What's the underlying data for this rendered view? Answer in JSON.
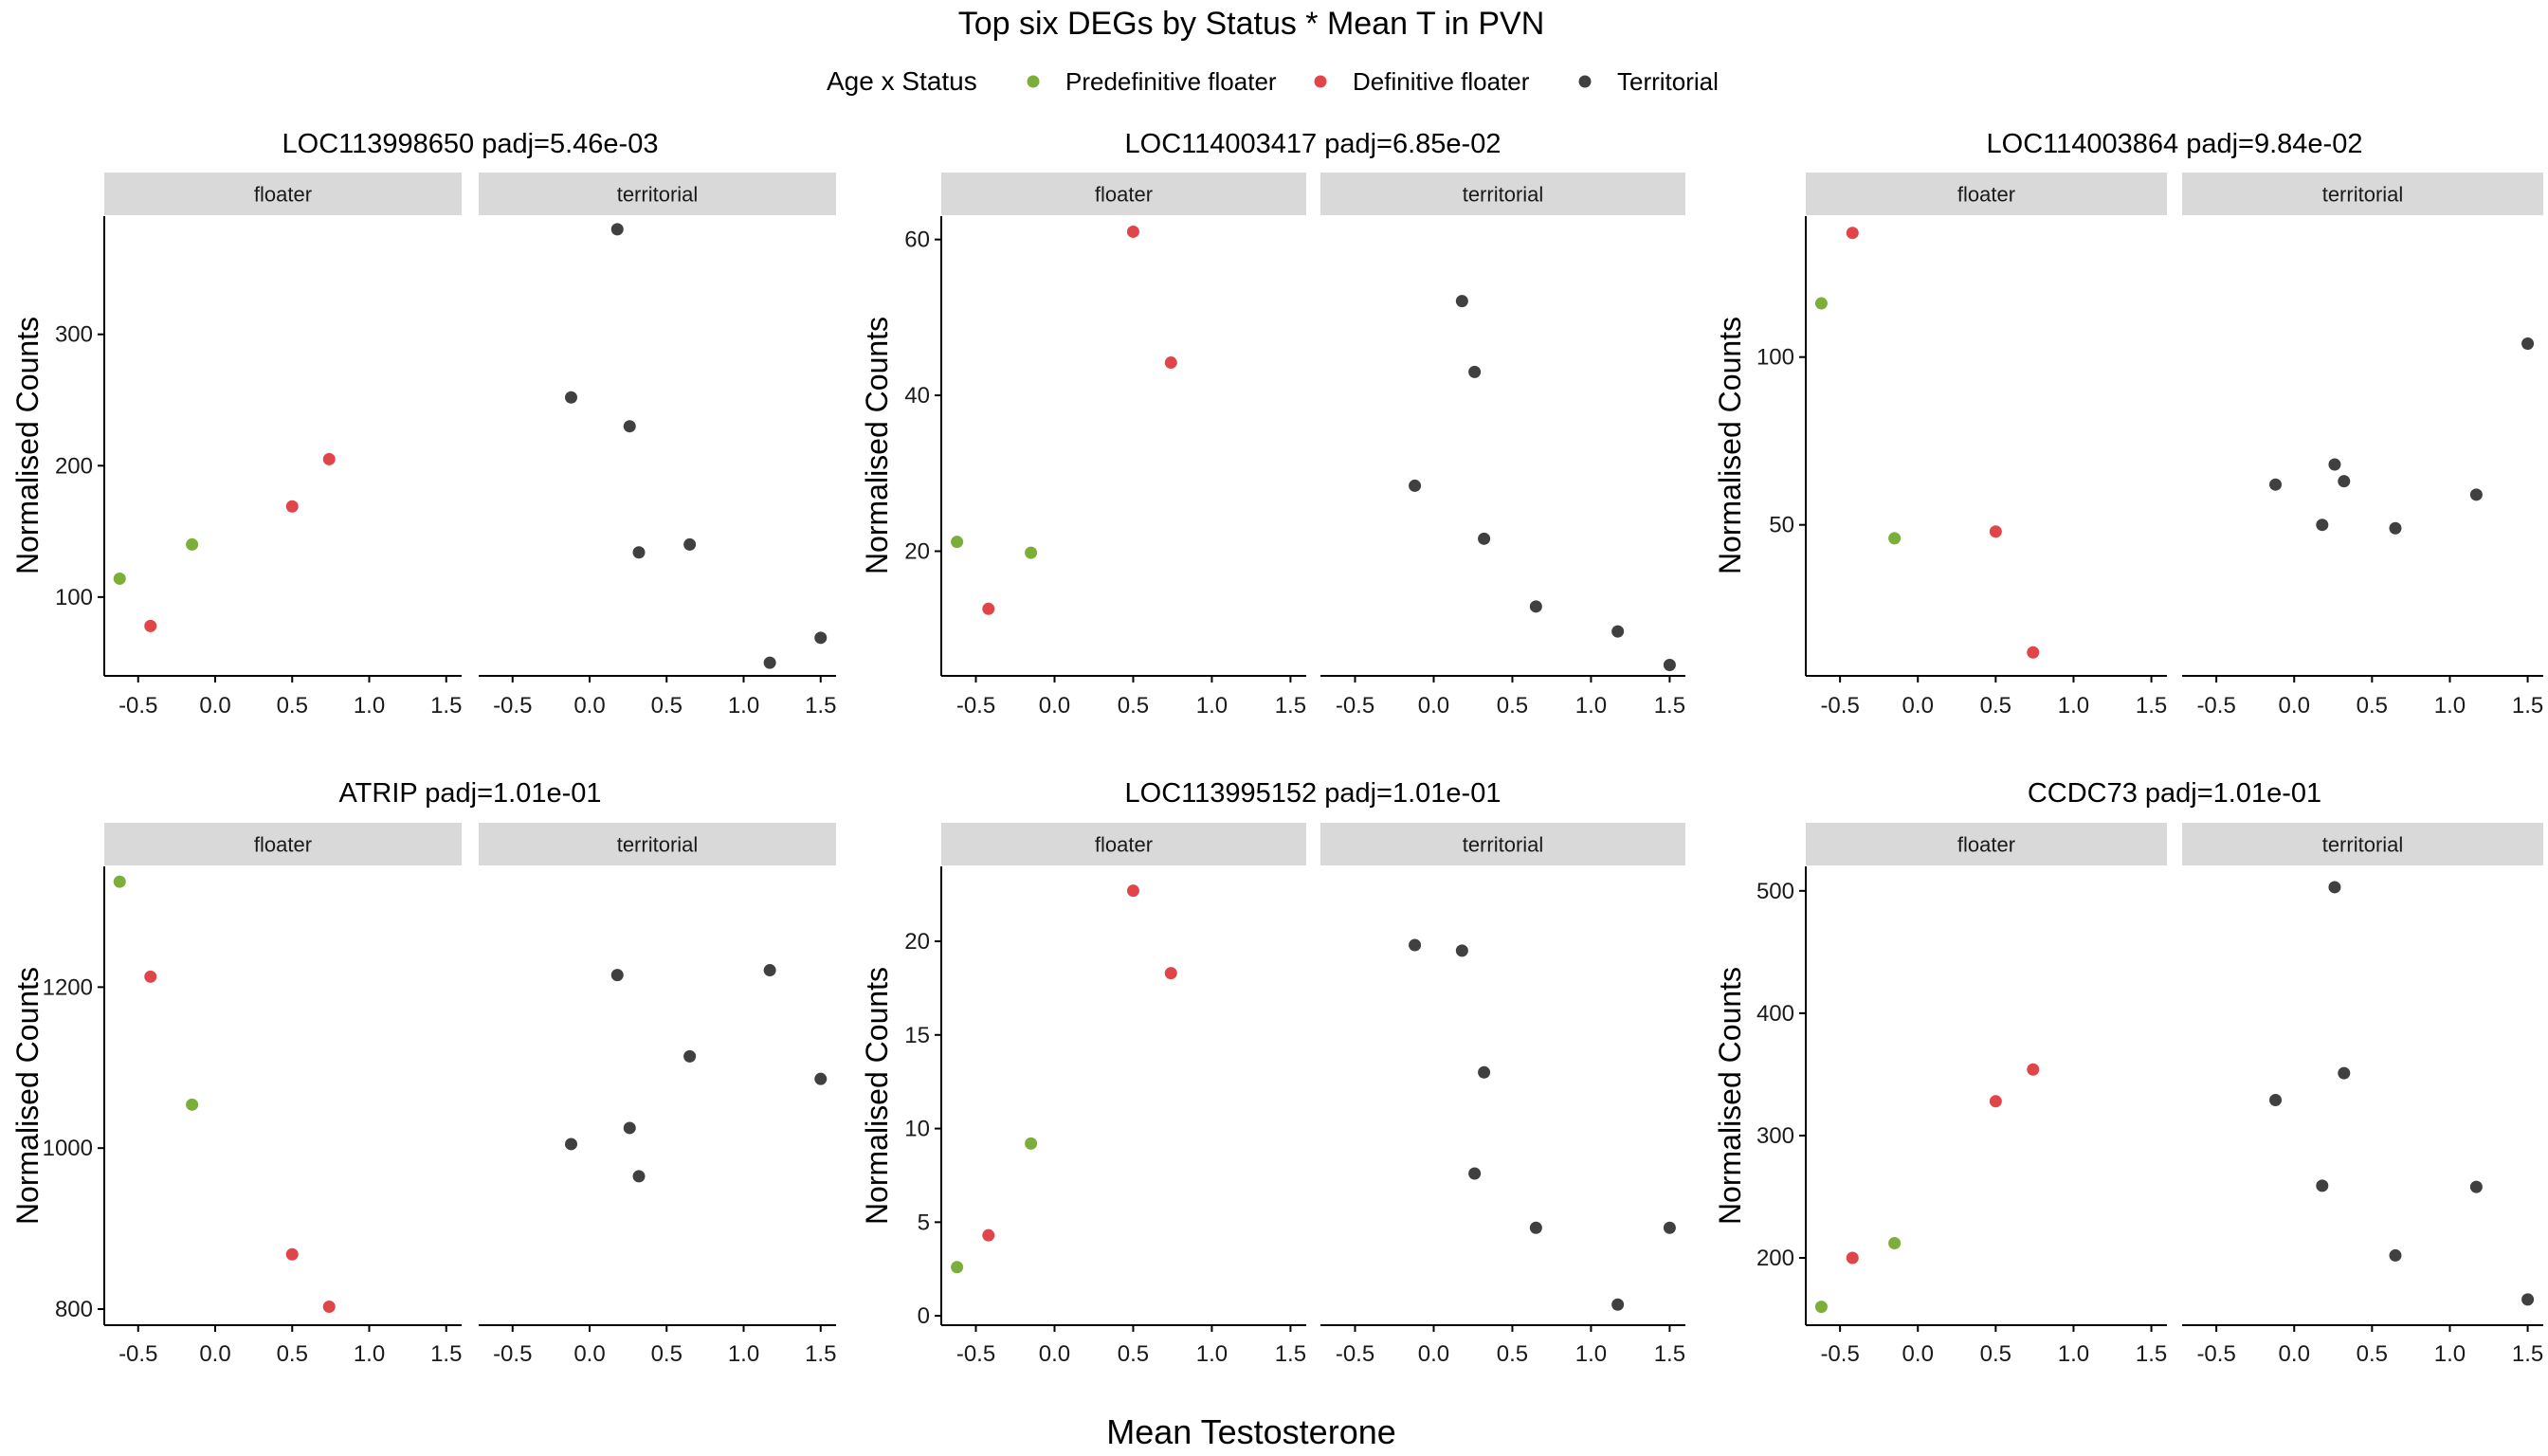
{
  "chart_data": {
    "type": "scatter",
    "title": "Top six DEGs by Status * Mean T in PVN",
    "xlabel": "Mean Testosterone",
    "ylabel": "Normalised Counts",
    "legend": {
      "title": "Age x Status",
      "position": "top",
      "entries": [
        {
          "key": "pre",
          "label": "Predefinitive floater",
          "color": "#7cae3a"
        },
        {
          "key": "def",
          "label": "Definitive floater",
          "color": "#e0454a"
        },
        {
          "key": "ter",
          "label": "Territorial",
          "color": "#404040"
        }
      ]
    },
    "facets": [
      "floater",
      "territorial"
    ],
    "xlim": [
      -0.72,
      1.6
    ],
    "xticks": [
      -0.5,
      0.0,
      0.5,
      1.0,
      1.5
    ],
    "xtick_labels": [
      "-0.5",
      "0.0",
      "0.5",
      "1.0",
      "1.5"
    ],
    "panels": [
      {
        "title": "LOC113998650 padj=5.46e-03",
        "ylim": [
          40,
          390
        ],
        "yticks": [
          100,
          200,
          300
        ],
        "points": {
          "floater": [
            {
              "x": -0.62,
              "y": 114,
              "group": "pre"
            },
            {
              "x": -0.15,
              "y": 140,
              "group": "pre"
            },
            {
              "x": -0.42,
              "y": 78,
              "group": "def"
            },
            {
              "x": 0.5,
              "y": 169,
              "group": "def"
            },
            {
              "x": 0.74,
              "y": 205,
              "group": "def"
            }
          ],
          "territorial": [
            {
              "x": -0.12,
              "y": 252,
              "group": "ter"
            },
            {
              "x": 0.18,
              "y": 380,
              "group": "ter"
            },
            {
              "x": 0.26,
              "y": 230,
              "group": "ter"
            },
            {
              "x": 0.32,
              "y": 134,
              "group": "ter"
            },
            {
              "x": 0.65,
              "y": 140,
              "group": "ter"
            },
            {
              "x": 1.17,
              "y": 50,
              "group": "ter"
            },
            {
              "x": 1.5,
              "y": 69,
              "group": "ter"
            }
          ]
        }
      },
      {
        "title": "LOC114003417 padj=6.85e-02",
        "ylim": [
          4,
          63
        ],
        "yticks": [
          20,
          40,
          60
        ],
        "points": {
          "floater": [
            {
              "x": -0.62,
              "y": 21.2,
              "group": "pre"
            },
            {
              "x": -0.15,
              "y": 19.8,
              "group": "pre"
            },
            {
              "x": -0.42,
              "y": 12.6,
              "group": "def"
            },
            {
              "x": 0.5,
              "y": 61,
              "group": "def"
            },
            {
              "x": 0.74,
              "y": 44.2,
              "group": "def"
            }
          ],
          "territorial": [
            {
              "x": -0.12,
              "y": 28.4,
              "group": "ter"
            },
            {
              "x": 0.18,
              "y": 52.1,
              "group": "ter"
            },
            {
              "x": 0.26,
              "y": 43,
              "group": "ter"
            },
            {
              "x": 0.32,
              "y": 21.6,
              "group": "ter"
            },
            {
              "x": 0.65,
              "y": 12.9,
              "group": "ter"
            },
            {
              "x": 1.17,
              "y": 9.7,
              "group": "ter"
            },
            {
              "x": 1.5,
              "y": 5.4,
              "group": "ter"
            }
          ]
        }
      },
      {
        "title": "LOC114003864 padj=9.84e-02",
        "ylim": [
          5,
          142
        ],
        "yticks": [
          50,
          100
        ],
        "points": {
          "floater": [
            {
              "x": -0.62,
              "y": 116,
              "group": "pre"
            },
            {
              "x": -0.15,
              "y": 46,
              "group": "pre"
            },
            {
              "x": -0.42,
              "y": 137,
              "group": "def"
            },
            {
              "x": 0.5,
              "y": 48,
              "group": "def"
            },
            {
              "x": 0.74,
              "y": 12,
              "group": "def"
            }
          ],
          "territorial": [
            {
              "x": -0.12,
              "y": 62,
              "group": "ter"
            },
            {
              "x": 0.18,
              "y": 50,
              "group": "ter"
            },
            {
              "x": 0.26,
              "y": 68,
              "group": "ter"
            },
            {
              "x": 0.32,
              "y": 63,
              "group": "ter"
            },
            {
              "x": 0.65,
              "y": 49,
              "group": "ter"
            },
            {
              "x": 1.17,
              "y": 59,
              "group": "ter"
            },
            {
              "x": 1.5,
              "y": 104,
              "group": "ter"
            }
          ]
        }
      },
      {
        "title": "ATRIP padj=1.01e-01",
        "ylim": [
          780,
          1350
        ],
        "yticks": [
          800,
          1000,
          1200
        ],
        "points": {
          "floater": [
            {
              "x": -0.62,
              "y": 1331,
              "group": "pre"
            },
            {
              "x": -0.15,
              "y": 1054,
              "group": "pre"
            },
            {
              "x": -0.42,
              "y": 1213,
              "group": "def"
            },
            {
              "x": 0.5,
              "y": 868,
              "group": "def"
            },
            {
              "x": 0.74,
              "y": 803,
              "group": "def"
            }
          ],
          "territorial": [
            {
              "x": -0.12,
              "y": 1005,
              "group": "ter"
            },
            {
              "x": 0.18,
              "y": 1215,
              "group": "ter"
            },
            {
              "x": 0.26,
              "y": 1025,
              "group": "ter"
            },
            {
              "x": 0.32,
              "y": 965,
              "group": "ter"
            },
            {
              "x": 0.65,
              "y": 1114,
              "group": "ter"
            },
            {
              "x": 1.17,
              "y": 1221,
              "group": "ter"
            },
            {
              "x": 1.5,
              "y": 1086,
              "group": "ter"
            }
          ]
        }
      },
      {
        "title": "LOC113995152 padj=1.01e-01",
        "ylim": [
          -0.5,
          24
        ],
        "yticks": [
          0,
          5,
          10,
          15,
          20
        ],
        "points": {
          "floater": [
            {
              "x": -0.62,
              "y": 2.6,
              "group": "pre"
            },
            {
              "x": -0.15,
              "y": 9.2,
              "group": "pre"
            },
            {
              "x": -0.42,
              "y": 4.3,
              "group": "def"
            },
            {
              "x": 0.5,
              "y": 22.7,
              "group": "def"
            },
            {
              "x": 0.74,
              "y": 18.3,
              "group": "def"
            }
          ],
          "territorial": [
            {
              "x": -0.12,
              "y": 19.8,
              "group": "ter"
            },
            {
              "x": 0.18,
              "y": 19.5,
              "group": "ter"
            },
            {
              "x": 0.26,
              "y": 7.6,
              "group": "ter"
            },
            {
              "x": 0.32,
              "y": 13,
              "group": "ter"
            },
            {
              "x": 0.65,
              "y": 4.7,
              "group": "ter"
            },
            {
              "x": 1.17,
              "y": 0.6,
              "group": "ter"
            },
            {
              "x": 1.5,
              "y": 4.7,
              "group": "ter"
            }
          ]
        }
      },
      {
        "title": "CCDC73 padj=1.01e-01",
        "ylim": [
          145,
          520
        ],
        "yticks": [
          200,
          300,
          400,
          500
        ],
        "points": {
          "floater": [
            {
              "x": -0.62,
              "y": 160,
              "group": "pre"
            },
            {
              "x": -0.15,
              "y": 212,
              "group": "pre"
            },
            {
              "x": -0.42,
              "y": 200,
              "group": "def"
            },
            {
              "x": 0.5,
              "y": 328,
              "group": "def"
            },
            {
              "x": 0.74,
              "y": 354,
              "group": "def"
            }
          ],
          "territorial": [
            {
              "x": -0.12,
              "y": 329,
              "group": "ter"
            },
            {
              "x": 0.18,
              "y": 259,
              "group": "ter"
            },
            {
              "x": 0.26,
              "y": 503,
              "group": "ter"
            },
            {
              "x": 0.32,
              "y": 351,
              "group": "ter"
            },
            {
              "x": 0.65,
              "y": 202,
              "group": "ter"
            },
            {
              "x": 1.17,
              "y": 258,
              "group": "ter"
            },
            {
              "x": 1.5,
              "y": 166,
              "group": "ter"
            }
          ]
        }
      }
    ]
  }
}
